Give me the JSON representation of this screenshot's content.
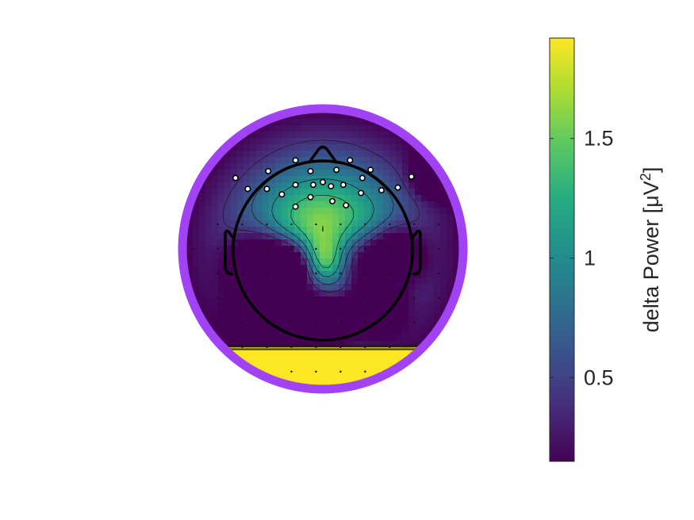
{
  "chart_data": {
    "type": "heatmap",
    "subtype": "eeg-topographic-map",
    "colormap": "viridis",
    "ring_color": "#a142f4",
    "grid": false,
    "legend_placement": "right",
    "colorbar": {
      "label_prefix": "delta Power [μV",
      "label_superscript": "2",
      "label_suffix": "]",
      "range": [
        0.15,
        1.92
      ],
      "ticks": [
        {
          "value": 0.5,
          "label": "0.5"
        },
        {
          "value": 1,
          "label": "1"
        },
        {
          "value": 1.5,
          "label": "1.5"
        }
      ]
    },
    "sources": [
      {
        "x": 0.0,
        "y": 0.0,
        "value": 1.92,
        "sigma": 0.45
      },
      {
        "x": -0.1,
        "y": -0.12,
        "value": -1.5,
        "sigma": 0.15
      },
      {
        "x": -0.44,
        "y": -0.1,
        "value": -1.45,
        "sigma": 0.17
      },
      {
        "x": -0.26,
        "y": -0.12,
        "value": -0.6,
        "sigma": 0.12
      },
      {
        "x": 0.18,
        "y": -0.1,
        "value": -1.3,
        "sigma": 0.16
      },
      {
        "x": 0.5,
        "y": -0.05,
        "value": -1.3,
        "sigma": 0.15
      },
      {
        "x": -0.36,
        "y": -0.44,
        "value": -1.55,
        "sigma": 0.17
      },
      {
        "x": 0.02,
        "y": -0.5,
        "value": -1.2,
        "sigma": 0.15
      },
      {
        "x": 0.38,
        "y": -0.42,
        "value": -1.2,
        "sigma": 0.14
      },
      {
        "x": 0.0,
        "y": -0.1,
        "value": 1.6,
        "sigma": 0.13
      },
      {
        "x": 0.82,
        "y": 0.55,
        "value": -1.0,
        "sigma": 0.1
      }
    ],
    "electrodes": [
      {
        "x": -0.64,
        "y": 0.52,
        "value": 1.9
      },
      {
        "x": -0.55,
        "y": 0.44,
        "value": 1.9
      },
      {
        "x": -0.41,
        "y": 0.44,
        "value": 1.9
      },
      {
        "x": -0.4,
        "y": 0.57,
        "value": 1.9
      },
      {
        "x": -0.2,
        "y": 0.65,
        "value": 1.9
      },
      {
        "x": -0.09,
        "y": 0.57,
        "value": 1.9
      },
      {
        "x": -0.09,
        "y": 0.38,
        "value": 1.9
      },
      {
        "x": -0.2,
        "y": 0.47,
        "value": 1.9
      },
      {
        "x": -0.3,
        "y": 0.4,
        "value": 1.9
      },
      {
        "x": -0.2,
        "y": 0.31,
        "value": 1.9
      },
      {
        "x": -0.07,
        "y": 0.47,
        "value": 1.9
      },
      {
        "x": 0.0,
        "y": 0.49,
        "value": 1.9
      },
      {
        "x": 0.1,
        "y": 0.58,
        "value": 1.9
      },
      {
        "x": 0.2,
        "y": 0.65,
        "value": 1.9
      },
      {
        "x": 0.35,
        "y": 0.58,
        "value": 1.9
      },
      {
        "x": 0.29,
        "y": 0.52,
        "value": 1.9
      },
      {
        "x": 0.15,
        "y": 0.47,
        "value": 1.9
      },
      {
        "x": 0.28,
        "y": 0.41,
        "value": 1.9
      },
      {
        "x": 0.43,
        "y": 0.43,
        "value": 1.9
      },
      {
        "x": 0.55,
        "y": 0.45,
        "value": 1.9
      },
      {
        "x": 0.65,
        "y": 0.53,
        "value": 1.9
      },
      {
        "x": 0.07,
        "y": 0.35,
        "value": 1.9
      },
      {
        "x": 0.17,
        "y": 0.32,
        "value": 1.9
      },
      {
        "x": 0.06,
        "y": 0.46,
        "value": 1.9
      }
    ]
  }
}
